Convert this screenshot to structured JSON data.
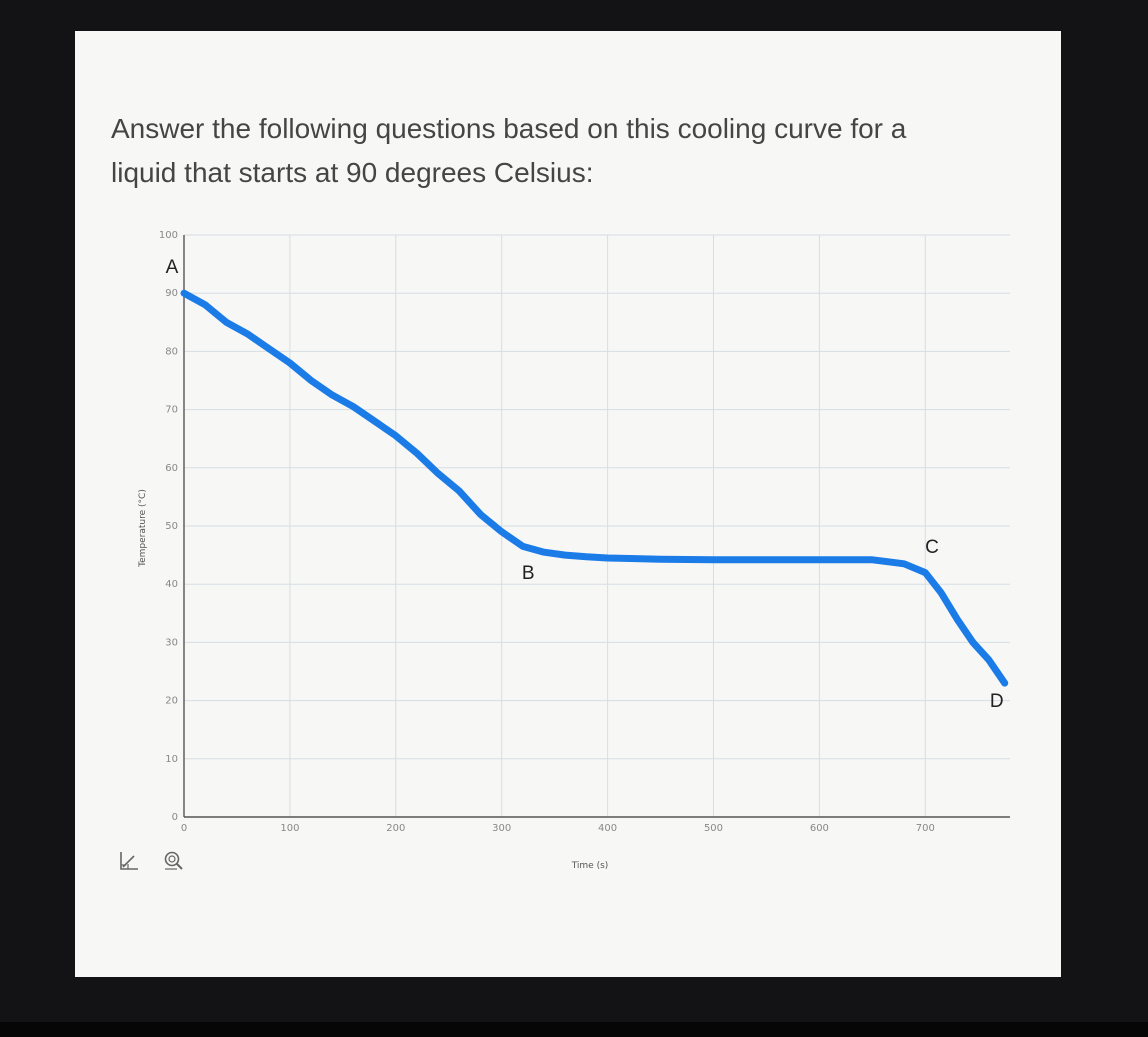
{
  "question": {
    "line1": "Answer the following questions based on this cooling curve for a",
    "line2": "liquid that starts at 90 degrees Celsius:"
  },
  "toolbar": {
    "tool1_icon": "axis-line-chart-icon",
    "tool2_icon": "zoom-icon"
  },
  "colors": {
    "curve": "#1b7ce8",
    "grid": "#d7dde4",
    "axis": "#555555"
  },
  "chart_data": {
    "type": "line",
    "title": "",
    "xlabel": "Time (s)",
    "ylabel": "Temperature (°C)",
    "xlim": [
      0,
      780
    ],
    "ylim": [
      0,
      100
    ],
    "x_ticks": [
      0,
      100,
      200,
      300,
      400,
      500,
      600,
      700
    ],
    "y_ticks": [
      0,
      10,
      20,
      30,
      40,
      50,
      60,
      70,
      80,
      90,
      100
    ],
    "grid": true,
    "series": [
      {
        "x": [
          0,
          20,
          40,
          60,
          80,
          100,
          120,
          140,
          160,
          180,
          200,
          220,
          240,
          260,
          280,
          300,
          320,
          340,
          360,
          380,
          400,
          450,
          500,
          550,
          600,
          650,
          680,
          700,
          715,
          730,
          745,
          760,
          775
        ],
        "y": [
          90,
          88,
          85,
          83,
          80.5,
          78,
          75,
          72.5,
          70.5,
          68,
          65.5,
          62.5,
          59,
          56,
          52,
          49,
          46.5,
          45.5,
          45,
          44.7,
          44.5,
          44.3,
          44.2,
          44.2,
          44.2,
          44.2,
          43.5,
          42,
          38.5,
          34,
          30,
          27,
          23
        ]
      }
    ],
    "annotations": [
      {
        "text": "A",
        "x": 0,
        "y": 90
      },
      {
        "text": "B",
        "x": 325,
        "y": 45
      },
      {
        "text": "C",
        "x": 695,
        "y": 44
      },
      {
        "text": "D",
        "x": 775,
        "y": 23
      }
    ]
  }
}
